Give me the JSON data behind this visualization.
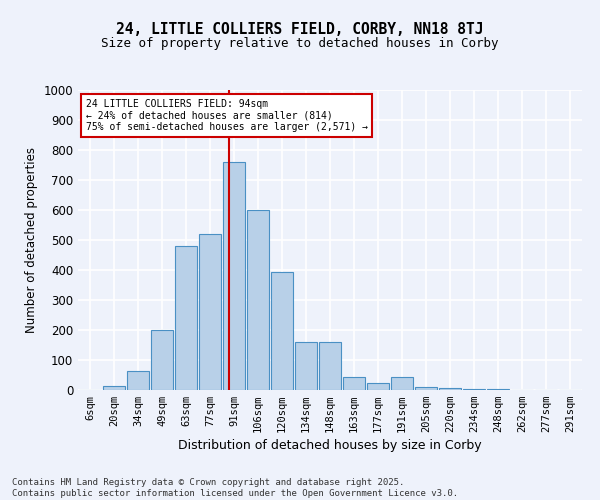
{
  "title_line1": "24, LITTLE COLLIERS FIELD, CORBY, NN18 8TJ",
  "title_line2": "Size of property relative to detached houses in Corby",
  "xlabel": "Distribution of detached houses by size in Corby",
  "ylabel": "Number of detached properties",
  "categories": [
    "6sqm",
    "20sqm",
    "34sqm",
    "49sqm",
    "63sqm",
    "77sqm",
    "91sqm",
    "106sqm",
    "120sqm",
    "134sqm",
    "148sqm",
    "163sqm",
    "177sqm",
    "191sqm",
    "205sqm",
    "220sqm",
    "234sqm",
    "248sqm",
    "262sqm",
    "277sqm",
    "291sqm"
  ],
  "bar_heights": [
    0,
    12,
    62,
    200,
    480,
    520,
    760,
    600,
    395,
    160,
    160,
    42,
    25,
    42,
    10,
    8,
    2,
    2,
    0,
    0,
    0
  ],
  "bar_color": "#b8d0e8",
  "bar_edge_color": "#4a90c4",
  "ylim": [
    0,
    1000
  ],
  "yticks": [
    0,
    100,
    200,
    300,
    400,
    500,
    600,
    700,
    800,
    900,
    1000
  ],
  "vline_index": 5.8,
  "annotation_text": "24 LITTLE COLLIERS FIELD: 94sqm\n← 24% of detached houses are smaller (814)\n75% of semi-detached houses are larger (2,571) →",
  "annotation_box_color": "#ffffff",
  "annotation_box_edge": "#cc0000",
  "footer": "Contains HM Land Registry data © Crown copyright and database right 2025.\nContains public sector information licensed under the Open Government Licence v3.0.",
  "background_color": "#eef2fb",
  "grid_color": "#ffffff"
}
